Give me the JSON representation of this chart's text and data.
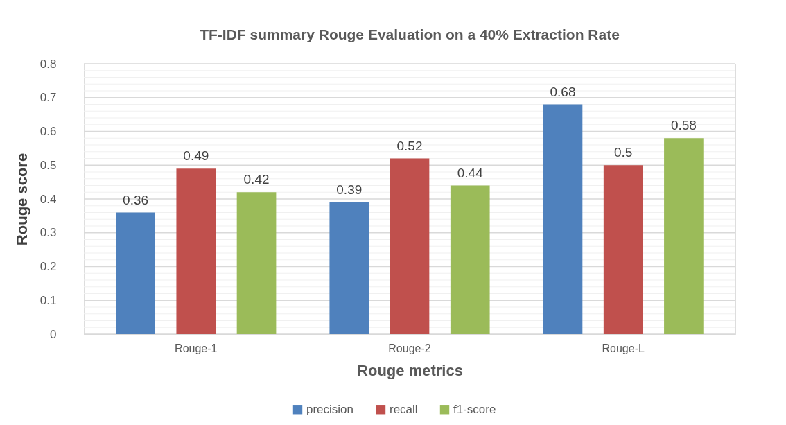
{
  "chart_data": {
    "type": "bar",
    "title": "TF-IDF summary Rouge Evaluation on a 40% Extraction Rate",
    "xlabel": "Rouge metrics",
    "ylabel": "Rouge score",
    "categories": [
      "Rouge-1",
      "Rouge-2",
      "Rouge-L"
    ],
    "series": [
      {
        "name": "precision",
        "color": "#4f81bd",
        "values": [
          0.36,
          0.39,
          0.68
        ]
      },
      {
        "name": "recall",
        "color": "#c0504d",
        "values": [
          0.49,
          0.52,
          0.5
        ]
      },
      {
        "name": "f1-score",
        "color": "#9bbb59",
        "values": [
          0.42,
          0.44,
          0.58
        ]
      }
    ],
    "ylim": [
      0,
      0.8
    ],
    "yticks": [
      0,
      {
        "value": 0.02,
        "label": null
      },
      {
        "value": 0.04,
        "label": null
      },
      {
        "value": 0.06,
        "label": null
      },
      {
        "value": 0.08,
        "label": null
      },
      0.1,
      {
        "value": 0.12,
        "label": null
      },
      {
        "value": 0.14,
        "label": null
      },
      {
        "value": 0.16,
        "label": null
      },
      {
        "value": 0.18,
        "label": null
      },
      0.2,
      {
        "value": 0.22,
        "label": null
      },
      {
        "value": 0.24,
        "label": null
      },
      {
        "value": 0.26,
        "label": null
      },
      {
        "value": 0.28,
        "label": null
      },
      0.3,
      {
        "value": 0.32,
        "label": null
      },
      {
        "value": 0.34,
        "label": null
      },
      {
        "value": 0.36,
        "label": null
      },
      {
        "value": 0.38,
        "label": null
      },
      0.4,
      {
        "value": 0.42,
        "label": null
      },
      {
        "value": 0.44,
        "label": null
      },
      {
        "value": 0.46,
        "label": null
      },
      {
        "value": 0.48,
        "label": null
      },
      0.5,
      {
        "value": 0.52,
        "label": null
      },
      {
        "value": 0.54,
        "label": null
      },
      {
        "value": 0.56,
        "label": null
      },
      {
        "value": 0.58,
        "label": null
      },
      0.6,
      {
        "value": 0.62,
        "label": null
      },
      {
        "value": 0.64,
        "label": null
      },
      {
        "value": 0.66,
        "label": null
      },
      {
        "value": 0.68,
        "label": null
      },
      0.7,
      {
        "value": 0.72,
        "label": null
      },
      {
        "value": 0.74,
        "label": null
      },
      {
        "value": 0.76,
        "label": null
      },
      {
        "value": 0.78,
        "label": null
      },
      0.8
    ],
    "grid": true,
    "data_labels": true,
    "legend": "bottom"
  }
}
